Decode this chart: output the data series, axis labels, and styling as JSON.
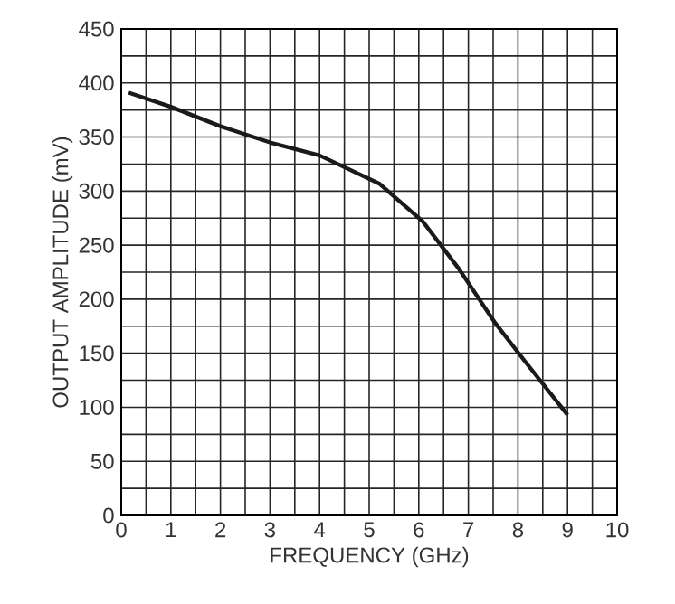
{
  "chart_data": {
    "type": "line",
    "xlabel": "FREQUENCY (GHz)",
    "ylabel": "OUTPUT AMPLITUDE (mV)",
    "x": [
      0.15,
      1,
      2,
      3,
      4,
      5.2,
      6.08,
      6.81,
      7.54,
      8.15,
      9
    ],
    "values": [
      391,
      378,
      360,
      345,
      333,
      307,
      272,
      228,
      178,
      142,
      93
    ],
    "color": "#1a1a1a",
    "line_style": "solid",
    "marker": "none",
    "grid": true,
    "xlim": [
      0,
      10
    ],
    "xticks": [
      0,
      1,
      2,
      3,
      4,
      5,
      6,
      7,
      8,
      9,
      10
    ],
    "ylim": [
      0,
      450
    ],
    "yticks": [
      0,
      50,
      100,
      150,
      200,
      250,
      300,
      350,
      400,
      450
    ]
  }
}
